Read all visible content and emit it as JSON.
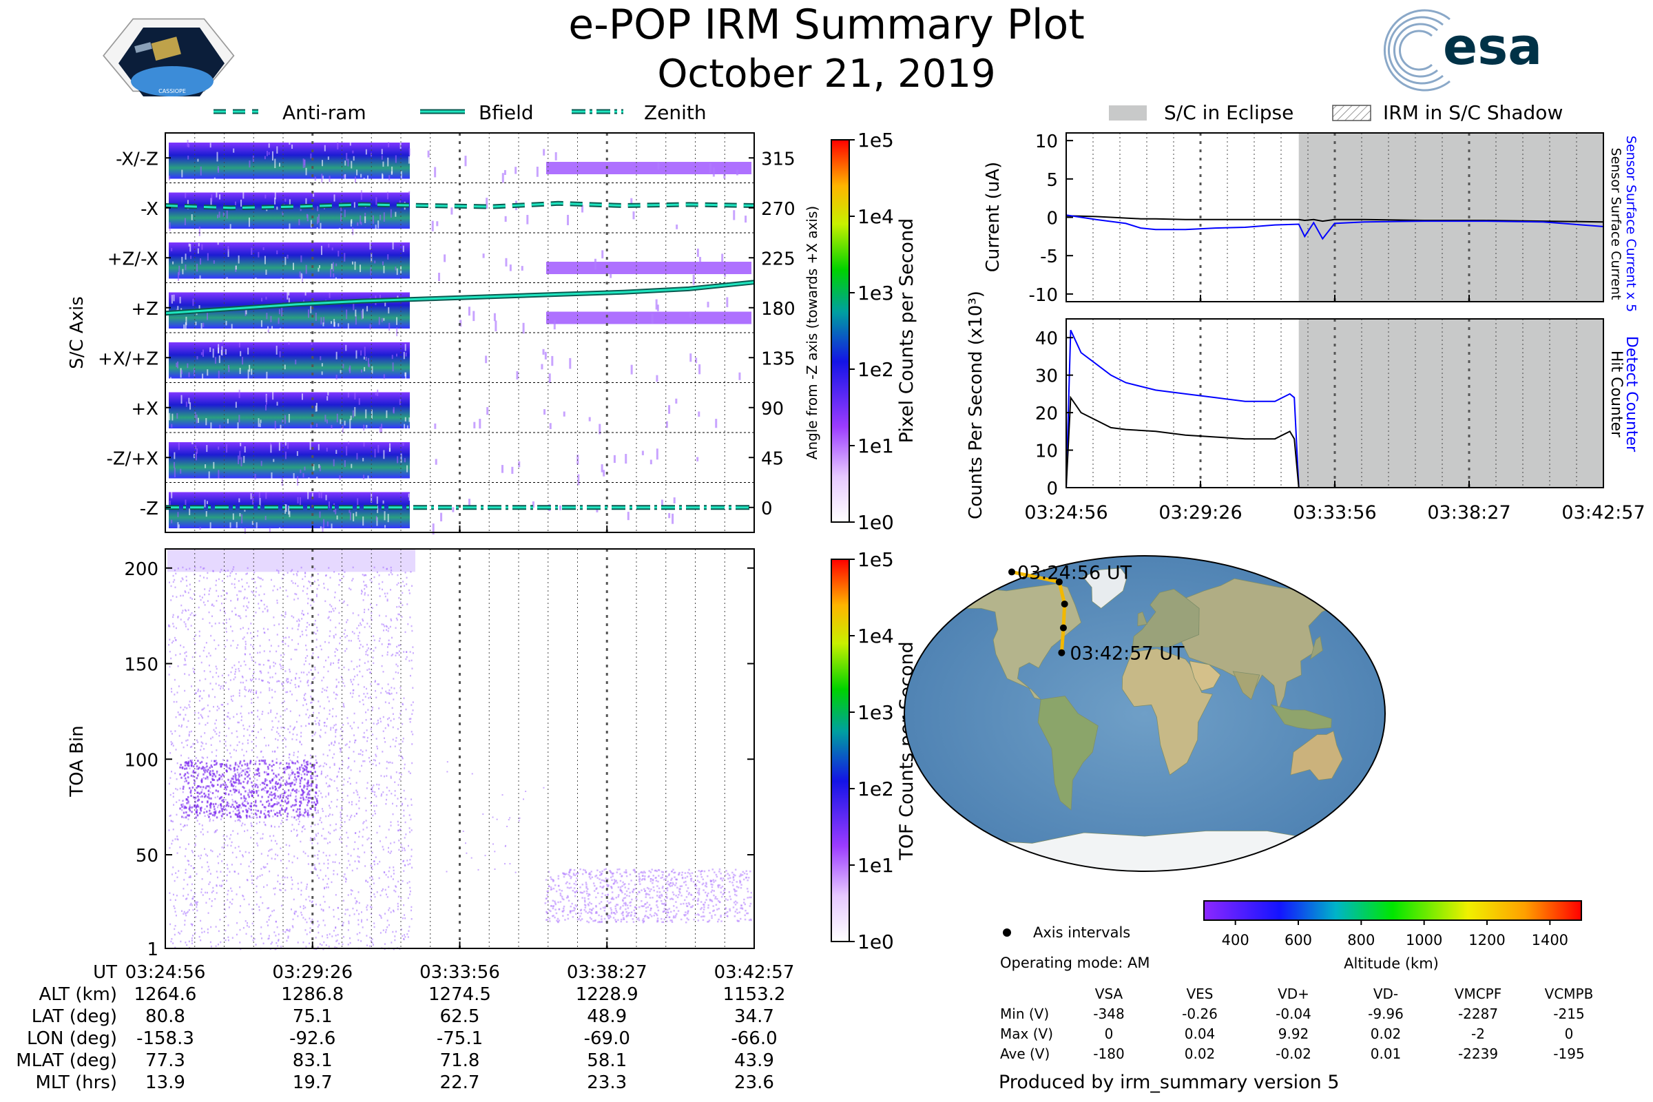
{
  "header": {
    "title": "e-POP IRM Summary Plot",
    "date": "October 21, 2019",
    "mission_logo_text": "CASSIOPE",
    "agency_logo_text": "esa"
  },
  "legend_left": {
    "items": [
      "Anti-ram",
      "Bfield",
      "Zenith"
    ]
  },
  "legend_right": {
    "items": [
      "S/C in Eclipse",
      "IRM in S/C Shadow"
    ]
  },
  "time_ticks": [
    "03:24:56",
    "03:29:26",
    "03:33:56",
    "03:38:27",
    "03:42:57"
  ],
  "chart_data": [
    {
      "type": "heatmap",
      "name": "pixel-angle-spectrogram",
      "ylabel": "S/C Axis",
      "y2label": "Angle from -Z axis (towards +X axis)",
      "y_categories": [
        "-X/-Z",
        "-X",
        "+Z/-X",
        "+Z",
        "+X/+Z",
        "+X",
        "-Z/+X",
        "-Z"
      ],
      "y2_ticks": [
        "315",
        "270",
        "225",
        "180",
        "135",
        "90",
        "45",
        "0"
      ],
      "colorbar": {
        "label": "Pixel Counts per Second",
        "ticks": [
          "1e5",
          "1e4",
          "1e3",
          "1e2",
          "1e1",
          "1e0"
        ]
      },
      "series": [
        {
          "name": "Anti-ram",
          "angle_deg": [
            272,
            270,
            271,
            273,
            272,
            271,
            274,
            272,
            273,
            272
          ]
        },
        {
          "name": "Bfield",
          "angle_deg": [
            175,
            179,
            183,
            186,
            188,
            190,
            192,
            194,
            197,
            203
          ]
        },
        {
          "name": "Zenith",
          "angle_deg": [
            0,
            0,
            0,
            0,
            0,
            0,
            0,
            0,
            0,
            0
          ]
        }
      ]
    },
    {
      "type": "heatmap",
      "name": "tof-spectrogram",
      "ylabel": "TOA Bin",
      "y_ticks": [
        "200",
        "150",
        "100",
        "50",
        "1"
      ],
      "ylim": [
        1,
        210
      ],
      "colorbar": {
        "label": "TOF Counts per Second",
        "ticks": [
          "1e5",
          "1e4",
          "1e3",
          "1e2",
          "1e1",
          "1e0"
        ]
      }
    },
    {
      "type": "line",
      "name": "current-panel",
      "ylabel": "Current (uA)",
      "y2label_blue": "Sensor Surface Current x 5",
      "y2label_black": "Sensor Surface Current",
      "y_ticks": [
        "10",
        "5",
        "0",
        "-5",
        "-10"
      ],
      "ylim": [
        -11,
        11
      ],
      "x_minutes": [
        0,
        1,
        2,
        2.5,
        3,
        4,
        5,
        6,
        7,
        7.8,
        8,
        8.3,
        8.6,
        9,
        10,
        12,
        14,
        16,
        18
      ],
      "series": [
        {
          "name": "Sensor Surface Current",
          "color": "#000000",
          "values": [
            0.2,
            0.1,
            -0.1,
            -0.2,
            -0.2,
            -0.3,
            -0.3,
            -0.3,
            -0.3,
            -0.3,
            -0.4,
            -0.3,
            -0.5,
            -0.3,
            -0.3,
            -0.4,
            -0.4,
            -0.5,
            -0.6
          ]
        },
        {
          "name": "Sensor Surface Current x 5",
          "color": "#0000ff",
          "values": [
            0.3,
            -0.3,
            -0.8,
            -1.4,
            -1.6,
            -1.6,
            -1.4,
            -1.3,
            -1.0,
            -0.9,
            -2.5,
            -0.7,
            -2.8,
            -0.8,
            -0.6,
            -0.5,
            -0.5,
            -0.6,
            -1.2
          ]
        }
      ]
    },
    {
      "type": "line",
      "name": "counts-panel",
      "ylabel": "Counts Per Second (x10³)",
      "y2label_blue": "Detect Counter",
      "y2label_black": "Hit Counter",
      "y_ticks": [
        "40",
        "30",
        "20",
        "10",
        "0"
      ],
      "ylim": [
        0,
        45
      ],
      "x_minutes": [
        0,
        0.15,
        0.5,
        1,
        1.5,
        2,
        3,
        4,
        5,
        6,
        7,
        7.5,
        7.65,
        7.8,
        8,
        10,
        14,
        18
      ],
      "series": [
        {
          "name": "Detect Counter",
          "color": "#0000ff",
          "values": [
            0,
            42,
            36,
            33,
            30,
            28,
            26,
            25,
            24,
            23,
            23,
            25,
            24,
            0,
            0,
            0,
            0,
            0
          ]
        },
        {
          "name": "Hit Counter",
          "color": "#000000",
          "values": [
            0,
            24,
            20,
            18,
            16,
            15.5,
            15,
            14,
            13.5,
            13,
            13,
            15,
            13,
            0,
            0,
            0,
            0,
            0
          ]
        }
      ]
    }
  ],
  "ephemeris": {
    "rows": [
      {
        "label": "UT",
        "values": [
          "03:24:56",
          "03:29:26",
          "03:33:56",
          "03:38:27",
          "03:42:57"
        ]
      },
      {
        "label": "ALT (km)",
        "values": [
          "1264.6",
          "1286.8",
          "1274.5",
          "1228.9",
          "1153.2"
        ]
      },
      {
        "label": "LAT (deg)",
        "values": [
          "80.8",
          "75.1",
          "62.5",
          "48.9",
          "34.7"
        ]
      },
      {
        "label": "LON (deg)",
        "values": [
          "-158.3",
          "-92.6",
          "-75.1",
          "-69.0",
          "-66.0"
        ]
      },
      {
        "label": "MLAT (deg)",
        "values": [
          "77.3",
          "83.1",
          "71.8",
          "58.1",
          "43.9"
        ]
      },
      {
        "label": "MLT (hrs)",
        "values": [
          "13.9",
          "19.7",
          "22.7",
          "23.3",
          "23.6"
        ]
      }
    ]
  },
  "map": {
    "start_label": "03:24:56 UT",
    "end_label": "03:42:57 UT",
    "track_lonlat": [
      [
        -158.3,
        80.8
      ],
      [
        -92.6,
        75.1
      ],
      [
        -75.1,
        62.5
      ],
      [
        -69.0,
        48.9
      ],
      [
        -66.0,
        34.7
      ]
    ],
    "colorbar_label": "Altitude (km)",
    "colorbar_ticks": [
      "400",
      "600",
      "800",
      "1000",
      "1200",
      "1400"
    ],
    "colorbar_range": [
      300,
      1500
    ]
  },
  "info": {
    "marker_label": "Axis intervals",
    "operating_mode": "Operating mode: AM",
    "columns": [
      "VSA",
      "VES",
      "VD+",
      "VD-",
      "VMCPF",
      "VCMPB"
    ],
    "rows": [
      {
        "label": "Min (V)",
        "values": [
          "-348",
          "-0.26",
          "-0.04",
          "-9.96",
          "-2287",
          "-215"
        ]
      },
      {
        "label": "Max (V)",
        "values": [
          "0",
          "0.04",
          "9.92",
          "0.02",
          "-2",
          "0"
        ]
      },
      {
        "label": "Ave (V)",
        "values": [
          "-180",
          "0.02",
          "-0.02",
          "0.01",
          "-2239",
          "-195"
        ]
      }
    ],
    "footer": "Produced by irm_summary version 5"
  },
  "colors": {
    "eclipse": "#c8c9c9",
    "bfield": "#1fe6c0",
    "esa": "#003247"
  }
}
